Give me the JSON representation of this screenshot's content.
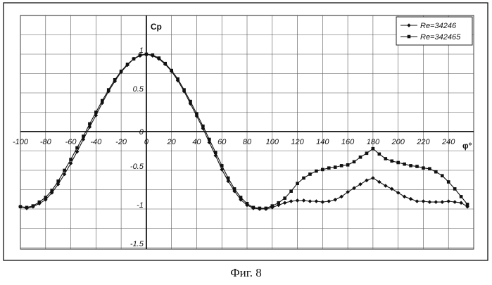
{
  "chart_data": {
    "type": "line",
    "title": "",
    "xlabel": "φ°",
    "ylabel": "Cp",
    "xlim": [
      -100,
      260
    ],
    "ylim": [
      -1.5,
      1.0
    ],
    "x_ticks": [
      -100,
      -80,
      -60,
      -40,
      -20,
      0,
      20,
      40,
      60,
      80,
      100,
      120,
      140,
      160,
      180,
      200,
      220,
      240
    ],
    "y_ticks": [
      1,
      0.5,
      0,
      -0.5,
      -1,
      -1.5
    ],
    "grid": true,
    "legend": "top-right",
    "series": [
      {
        "name": "Re=34246",
        "marker": "diamond",
        "x": [
          -100,
          -95,
          -90,
          -85,
          -80,
          -75,
          -70,
          -65,
          -60,
          -55,
          -50,
          -45,
          -40,
          -35,
          -30,
          -25,
          -20,
          -15,
          -10,
          -5,
          0,
          5,
          10,
          15,
          20,
          25,
          30,
          35,
          40,
          45,
          50,
          55,
          60,
          65,
          70,
          75,
          80,
          85,
          90,
          95,
          100,
          105,
          110,
          115,
          120,
          125,
          130,
          135,
          140,
          145,
          150,
          155,
          160,
          165,
          170,
          175,
          180,
          185,
          190,
          195,
          200,
          205,
          210,
          215,
          220,
          225,
          230,
          235,
          240,
          245,
          250,
          255
        ],
        "values": [
          -0.97,
          -0.99,
          -0.97,
          -0.93,
          -0.88,
          -0.79,
          -0.68,
          -0.55,
          -0.41,
          -0.26,
          -0.1,
          0.06,
          0.21,
          0.37,
          0.52,
          0.65,
          0.77,
          0.86,
          0.94,
          0.98,
          1.0,
          0.98,
          0.94,
          0.87,
          0.78,
          0.66,
          0.52,
          0.36,
          0.2,
          0.04,
          -0.14,
          -0.31,
          -0.49,
          -0.64,
          -0.77,
          -0.88,
          -0.95,
          -0.99,
          -1.0,
          -1.0,
          -0.98,
          -0.95,
          -0.92,
          -0.9,
          -0.89,
          -0.89,
          -0.9,
          -0.9,
          -0.91,
          -0.9,
          -0.88,
          -0.84,
          -0.78,
          -0.73,
          -0.68,
          -0.63,
          -0.6,
          -0.65,
          -0.7,
          -0.74,
          -0.79,
          -0.84,
          -0.87,
          -0.9,
          -0.9,
          -0.91,
          -0.91,
          -0.91,
          -0.9,
          -0.91,
          -0.92,
          -0.97
        ]
      },
      {
        "name": "Re=342465",
        "marker": "square",
        "x": [
          -100,
          -95,
          -90,
          -85,
          -80,
          -75,
          -70,
          -65,
          -60,
          -55,
          -50,
          -45,
          -40,
          -35,
          -30,
          -25,
          -20,
          -15,
          -10,
          -5,
          0,
          5,
          10,
          15,
          20,
          25,
          30,
          35,
          40,
          45,
          50,
          55,
          60,
          65,
          70,
          75,
          80,
          85,
          90,
          95,
          100,
          105,
          110,
          115,
          120,
          125,
          130,
          135,
          140,
          145,
          150,
          155,
          160,
          165,
          170,
          175,
          180,
          185,
          190,
          195,
          200,
          205,
          210,
          215,
          220,
          225,
          230,
          235,
          240,
          245,
          250,
          255
        ],
        "values": [
          -0.97,
          -0.98,
          -0.96,
          -0.91,
          -0.85,
          -0.76,
          -0.64,
          -0.5,
          -0.36,
          -0.21,
          -0.06,
          0.1,
          0.25,
          0.4,
          0.54,
          0.67,
          0.78,
          0.87,
          0.94,
          0.99,
          1.0,
          0.99,
          0.95,
          0.88,
          0.79,
          0.68,
          0.54,
          0.39,
          0.23,
          0.07,
          -0.1,
          -0.27,
          -0.44,
          -0.6,
          -0.74,
          -0.85,
          -0.93,
          -0.98,
          -0.99,
          -0.99,
          -0.96,
          -0.92,
          -0.86,
          -0.77,
          -0.67,
          -0.6,
          -0.55,
          -0.51,
          -0.49,
          -0.47,
          -0.46,
          -0.44,
          -0.43,
          -0.39,
          -0.33,
          -0.28,
          -0.22,
          -0.29,
          -0.35,
          -0.38,
          -0.4,
          -0.42,
          -0.44,
          -0.45,
          -0.47,
          -0.48,
          -0.52,
          -0.57,
          -0.65,
          -0.74,
          -0.84,
          -0.94
        ]
      }
    ]
  },
  "caption": "Фиг. 8"
}
